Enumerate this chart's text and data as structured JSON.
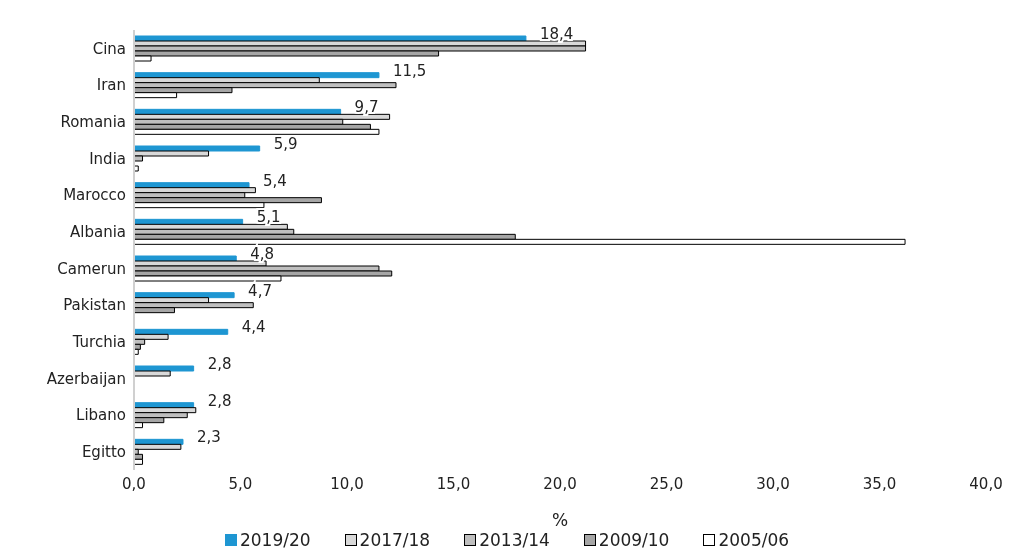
{
  "chart_data": {
    "type": "bar",
    "orientation": "horizontal",
    "xlabel": "%",
    "categories": [
      "Cina",
      "Iran",
      "Romania",
      "India",
      "Marocco",
      "Albania",
      "Camerun",
      "Pakistan",
      "Turchia",
      "Azerbaijan",
      "Libano",
      "Egitto"
    ],
    "series": [
      {
        "name": "2019/20",
        "color": "#1e96d2",
        "values": [
          18.4,
          11.5,
          9.7,
          5.9,
          5.4,
          5.1,
          4.8,
          4.7,
          4.4,
          2.8,
          2.8,
          2.3
        ],
        "value_labels": [
          "18,4",
          "11,5",
          "9,7",
          "5,9",
          "5,4",
          "5,1",
          "4,8",
          "4,7",
          "4,4",
          "2,8",
          "2,8",
          "2,3"
        ]
      },
      {
        "name": "2017/18",
        "color": "#d9d9d9",
        "values": [
          21.2,
          8.7,
          12.0,
          3.5,
          5.7,
          7.2,
          6.2,
          3.5,
          1.6,
          1.7,
          2.9,
          2.2
        ]
      },
      {
        "name": "2013/14",
        "color": "#bfbfbf",
        "values": [
          21.2,
          12.3,
          9.8,
          0.4,
          5.2,
          7.5,
          11.5,
          5.6,
          0.5,
          null,
          2.5,
          0.2
        ]
      },
      {
        "name": "2009/10",
        "color": "#a6a6a6",
        "values": [
          14.3,
          4.6,
          11.1,
          null,
          8.8,
          17.9,
          12.1,
          1.9,
          0.3,
          null,
          1.4,
          0.4
        ]
      },
      {
        "name": "2005/06",
        "color": "#ffffff",
        "values": [
          0.8,
          2.0,
          11.5,
          0.2,
          6.1,
          36.2,
          6.9,
          null,
          0.2,
          null,
          0.4,
          0.4
        ]
      }
    ],
    "xlim": [
      0,
      40
    ],
    "xticks": [
      {
        "value": 0,
        "label": "0,0"
      },
      {
        "value": 5,
        "label": "5,0"
      },
      {
        "value": 10,
        "label": "10,0"
      },
      {
        "value": 15,
        "label": "15,0"
      },
      {
        "value": 20,
        "label": "20,0"
      },
      {
        "value": 25,
        "label": "25,0"
      },
      {
        "value": 30,
        "label": "30,0"
      },
      {
        "value": 35,
        "label": "35,0"
      },
      {
        "value": 40,
        "label": "40,0"
      }
    ],
    "grid": false,
    "legend": "bottom"
  }
}
